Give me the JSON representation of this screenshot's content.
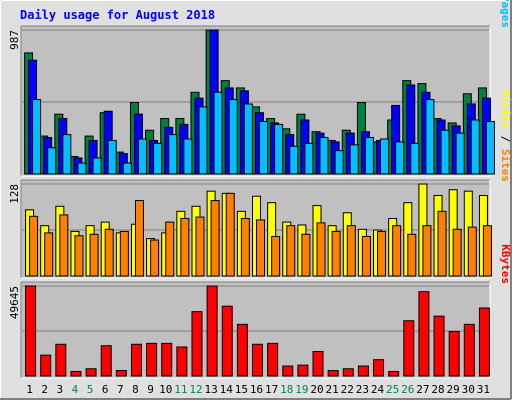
{
  "chart_data": {
    "type": "bar",
    "title": "Daily usage for August 2018",
    "colors": {
      "background": "#e0e0e0",
      "panel": "#c0c0c0",
      "title": "#0000ff",
      "hits": "#008040",
      "files": "#0000ff",
      "pages": "#00c0ff",
      "visits": "#ffff00",
      "sites": "#ff8000",
      "kbytes": "#ff0000",
      "weekend_day": "#00805c",
      "weekday": "#000000"
    },
    "categories": [
      "1",
      "2",
      "3",
      "4",
      "5",
      "6",
      "7",
      "8",
      "9",
      "10",
      "11",
      "12",
      "13",
      "14",
      "15",
      "16",
      "17",
      "18",
      "19",
      "20",
      "21",
      "22",
      "23",
      "24",
      "25",
      "26",
      "27",
      "28",
      "29",
      "30",
      "31"
    ],
    "weekend_days": [
      "4",
      "5",
      "11",
      "12",
      "18",
      "19",
      "25",
      "26"
    ],
    "panels": [
      {
        "name": "usage",
        "ymax": 987,
        "ymax_label": "987",
        "legend": [
          {
            "text": "Hits",
            "color_key": "hits"
          },
          {
            "text": " / ",
            "color_key": "weekday"
          },
          {
            "text": "Files",
            "color_key": "files"
          },
          {
            "text": " / ",
            "color_key": "weekday"
          },
          {
            "text": "Pages",
            "color_key": "pages"
          }
        ],
        "series": [
          {
            "name": "Hits",
            "color_key": "hits",
            "values": [
              830,
              260,
              410,
              120,
              260,
              420,
              150,
              490,
              300,
              380,
              380,
              560,
              987,
              640,
              590,
              460,
              380,
              310,
              410,
              290,
              230,
              300,
              490,
              220,
              370,
              640,
              620,
              380,
              350,
              550,
              590
            ]
          },
          {
            "name": "Files",
            "color_key": "files",
            "values": [
              780,
              250,
              380,
              110,
              230,
              430,
              140,
              410,
              230,
              320,
              340,
              520,
              987,
              590,
              570,
              420,
              350,
              270,
              370,
              280,
              220,
              280,
              290,
              230,
              470,
              610,
              560,
              370,
              330,
              480,
              520
            ]
          },
          {
            "name": "Pages",
            "color_key": "pages",
            "values": [
              510,
              180,
              270,
              75,
              110,
              230,
              75,
              240,
              210,
              270,
              240,
              460,
              560,
              510,
              480,
              360,
              340,
              190,
              210,
              250,
              160,
              200,
              250,
              240,
              220,
              210,
              510,
              300,
              280,
              370,
              360
            ]
          }
        ]
      },
      {
        "name": "visits",
        "ymax": 128,
        "ymax_label": "128",
        "legend": [
          {
            "text": "Visits",
            "color_key": "visits"
          },
          {
            "text": " / ",
            "color_key": "weekday"
          },
          {
            "text": "Sites",
            "color_key": "sites"
          }
        ],
        "series": [
          {
            "name": "Visits",
            "color_key": "visits",
            "values": [
              92,
              70,
              97,
              62,
              70,
              75,
              60,
              72,
              52,
              60,
              90,
              97,
              118,
              115,
              90,
              111,
              102,
              75,
              71,
              98,
              70,
              88,
              65,
              64,
              80,
              102,
              128,
              112,
              120,
              118,
              112
            ]
          },
          {
            "name": "Sites",
            "color_key": "sites",
            "values": [
              83,
              60,
              85,
              56,
              58,
              65,
              62,
              105,
              50,
              75,
              80,
              82,
              105,
              115,
              80,
              78,
              55,
              70,
              58,
              74,
              62,
              70,
              55,
              62,
              70,
              58,
              70,
              90,
              65,
              68,
              70
            ]
          }
        ]
      },
      {
        "name": "kbytes",
        "ymax": 49645,
        "ymax_label": "49645",
        "legend": [
          {
            "text": "KBytes",
            "color_key": "kbytes"
          }
        ],
        "series": [
          {
            "name": "KBytes",
            "color_key": "kbytes",
            "values": [
              49645,
              11500,
              17500,
              2500,
              4000,
              16700,
              3000,
              17500,
              18000,
              18000,
              16000,
              35500,
              49645,
              38500,
              28500,
              17500,
              18000,
              5500,
              6000,
              13500,
              3000,
              4000,
              5500,
              9000,
              2500,
              30500,
              46500,
              33000,
              24500,
              28500,
              37500
            ]
          }
        ]
      }
    ]
  }
}
